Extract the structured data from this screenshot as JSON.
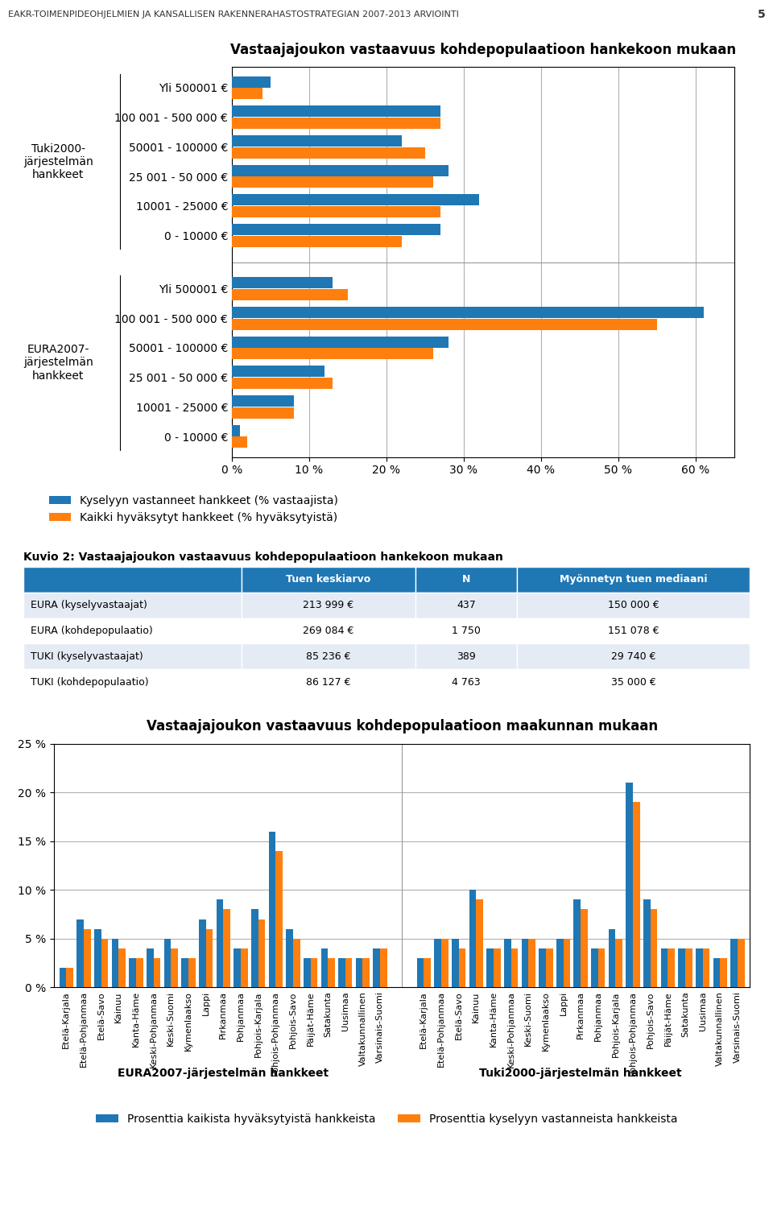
{
  "page_header": "EAKR-TOIMENPIDEOHJELMIEN JA KANSALLISEN RAKENNERAHASTOSTRATEGIAN 2007-2013 ARVIOINTI",
  "page_number": "5",
  "chart_data": [
    {
      "type": "bar",
      "orientation": "horizontal",
      "title": "Vastaajajoukon vastaavuus kohdepopulaatioon hankekoon mukaan",
      "groups": [
        {
          "label": "Tuki2000-\njärjestelmän\nhankkeet",
          "categories": [
            "Yli 500001 €",
            "100 001 - 500 000 €",
            "50001 - 100000 €",
            "25 001 - 50 000 €",
            "10001 - 25000 €",
            "0 - 10000 €"
          ]
        },
        {
          "label": "EURA2007-\njärjestelmän\nhankkeet",
          "categories": [
            "Yli 500001 €",
            "100 001 - 500 000 €",
            "50001 - 100000 €",
            "25 001 - 50 000 €",
            "10001 - 25000 €",
            "0 - 10000 €"
          ]
        }
      ],
      "series": [
        {
          "name": "Kyselyyn vastanneet hankkeet (% vastaajista)",
          "values": [
            5,
            27,
            22,
            28,
            32,
            27,
            13,
            61,
            28,
            12,
            8,
            1
          ]
        },
        {
          "name": "Kaikki hyväksytyt hankkeet (% hyväksytyistä)",
          "values": [
            4,
            27,
            25,
            26,
            27,
            22,
            15,
            55,
            26,
            13,
            8,
            2
          ]
        }
      ],
      "xlim": [
        0,
        65
      ],
      "xticks": [
        {
          "value": 0,
          "label": "0 %"
        },
        {
          "value": 10,
          "label": "10 %"
        },
        {
          "value": 20,
          "label": "20 %"
        },
        {
          "value": 30,
          "label": "30 %"
        },
        {
          "value": 40,
          "label": "40 %"
        },
        {
          "value": 50,
          "label": "50 %"
        },
        {
          "value": 60,
          "label": "60 %"
        }
      ],
      "grid": true,
      "legend": "below"
    },
    {
      "type": "table",
      "title": "Kuvio 2: Vastaajajoukon vastaavuus kohdepopulaatioon hankekoon mukaan",
      "columns": [
        null,
        "Tuen keskiarvo",
        "N",
        "Myönnetyn tuen mediaani"
      ],
      "rows": [
        [
          "EURA (kyselyvastaajat)",
          "213 999 €",
          "437",
          "150 000 €"
        ],
        [
          "EURA (kohdepopulaatio)",
          "269 084 €",
          "1 750",
          "151 078 €"
        ],
        [
          "TUKI (kyselyvastaajat)",
          "85 236 €",
          "389",
          "29 740 €"
        ],
        [
          "TUKI (kohdepopulaatio)",
          "86 127 €",
          "4 763",
          "35 000 €"
        ]
      ]
    },
    {
      "type": "bar",
      "title": "Vastaajajoukon vastaavuus kohdepopulaatioon maakunnan mukaan",
      "groups": [
        {
          "label": "EURA2007-järjestelmän hankkeet",
          "categories": [
            "Etelä-Karjala",
            "Etelä-Pohjanmaa",
            "Etelä-Savo",
            "Kainuu",
            "Kanta-Häme",
            "Keski-Pohjanmaa",
            "Keski-Suomi",
            "Kymenlaakso",
            "Lappi",
            "Pirkanmaa",
            "Pohjanmaa",
            "Pohjois-Karjala",
            "Pohjois-Pohjanmaa",
            "Pohjois-Savo",
            "Päijät-Häme",
            "Satakunta",
            "Uusimaa",
            "Valtakunnallinen",
            "Varsinais-Suomi"
          ]
        },
        {
          "label": "Tuki2000-järjestelmän hankkeet",
          "categories": [
            "Etelä-Karjala",
            "Etelä-Pohjanmaa",
            "Etelä-Savo",
            "Kainuu",
            "Kanta-Häme",
            "Keski-Pohjanmaa",
            "Keski-Suomi",
            "Kymenlaakso",
            "Lappi",
            "Pirkanmaa",
            "Pohjanmaa",
            "Pohjois-Karjala",
            "Pohjois-Pohjanmaa",
            "Pohjois-Savo",
            "Päijät-Häme",
            "Satakunta",
            "Uusimaa",
            "Valtakunnallinen",
            "Varsinais-Suomi"
          ]
        }
      ],
      "series": [
        {
          "name": "Prosenttia kaikista hyväksytyistä hankkeista",
          "values": [
            2,
            7,
            6,
            5,
            3,
            4,
            5,
            3,
            7,
            9,
            4,
            8,
            16,
            6,
            3,
            4,
            3,
            3,
            4,
            3,
            5,
            5,
            10,
            4,
            5,
            5,
            4,
            5,
            9,
            4,
            6,
            21,
            9,
            4,
            4,
            4,
            3,
            5
          ]
        },
        {
          "name": "Prosenttia kyselyyn vastanneista hankkeista",
          "values": [
            2,
            6,
            5,
            4,
            3,
            3,
            4,
            3,
            6,
            8,
            4,
            7,
            14,
            5,
            3,
            3,
            3,
            3,
            4,
            3,
            5,
            4,
            9,
            4,
            4,
            5,
            4,
            5,
            8,
            4,
            5,
            19,
            8,
            4,
            4,
            4,
            3,
            5
          ]
        }
      ],
      "ylim": [
        0,
        25
      ],
      "yticks": [
        {
          "value": 0,
          "label": "0 %"
        },
        {
          "value": 5,
          "label": "5 %"
        },
        {
          "value": 10,
          "label": "10 %"
        },
        {
          "value": 15,
          "label": "15 %"
        },
        {
          "value": 20,
          "label": "20 %"
        },
        {
          "value": 25,
          "label": "25 %"
        }
      ],
      "grid": true,
      "legend": "below"
    }
  ]
}
